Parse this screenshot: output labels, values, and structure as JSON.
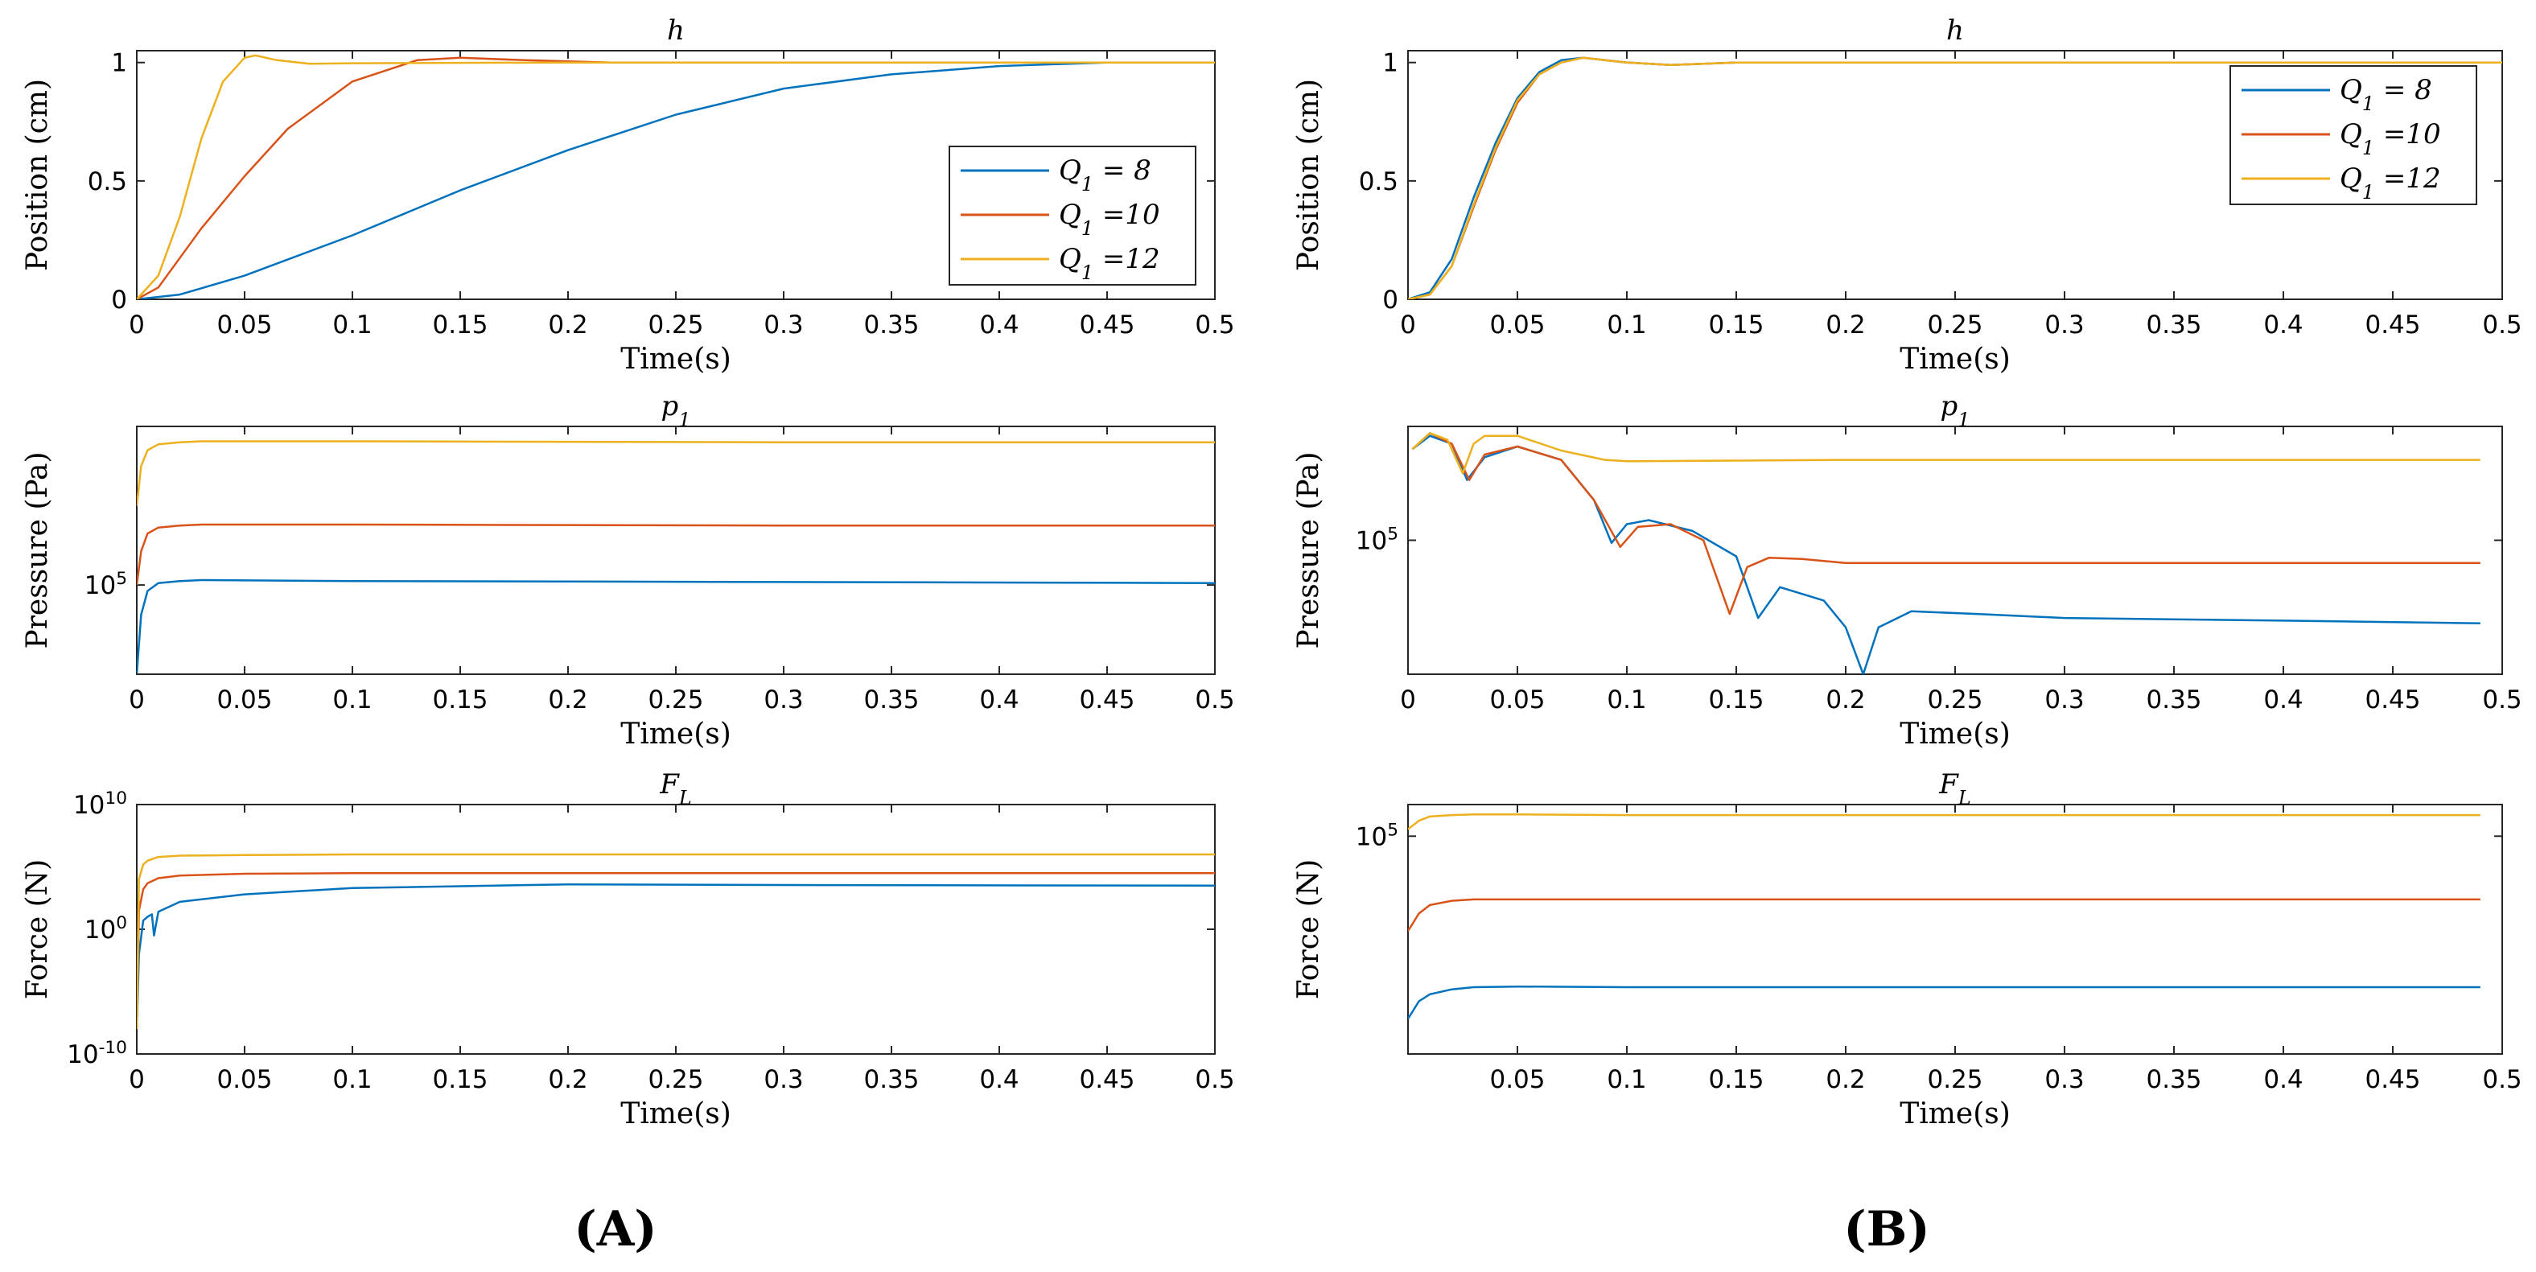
{
  "panel_labels": [
    "(A)",
    "(B)"
  ],
  "colors": {
    "Q1 = 8": "#0072BD",
    "Q1 =10": "#D95319",
    "Q1 =12": "#EDB120"
  },
  "chart_data": [
    {
      "id": "A-h",
      "type": "line",
      "title": "h",
      "xlabel": "Time(s)",
      "ylabel": "Position (cm)",
      "xlim": [
        0,
        0.5
      ],
      "ylim": [
        0,
        1.05
      ],
      "yscale": "linear",
      "xticks": [
        0,
        0.05,
        0.1,
        0.15,
        0.2,
        0.25,
        0.3,
        0.35,
        0.4,
        0.45,
        0.5
      ],
      "yticks": [
        0,
        0.5,
        1
      ],
      "ytick_labels": [
        "0",
        "0.5",
        "1"
      ],
      "legend": "right",
      "series": [
        {
          "name": "Q1 = 8",
          "x": [
            0,
            0.02,
            0.05,
            0.1,
            0.15,
            0.2,
            0.25,
            0.3,
            0.35,
            0.4,
            0.45,
            0.5
          ],
          "y": [
            0,
            0.02,
            0.1,
            0.27,
            0.46,
            0.63,
            0.78,
            0.89,
            0.95,
            0.985,
            1.0,
            1.0
          ]
        },
        {
          "name": "Q1 =10",
          "x": [
            0,
            0.01,
            0.03,
            0.05,
            0.07,
            0.1,
            0.13,
            0.15,
            0.18,
            0.22,
            0.3,
            0.5
          ],
          "y": [
            0,
            0.05,
            0.3,
            0.52,
            0.72,
            0.92,
            1.01,
            1.02,
            1.01,
            1.0,
            1.0,
            1.0
          ]
        },
        {
          "name": "Q1 =12",
          "x": [
            0,
            0.01,
            0.02,
            0.03,
            0.04,
            0.05,
            0.055,
            0.065,
            0.08,
            0.1,
            0.2,
            0.5
          ],
          "y": [
            0,
            0.1,
            0.35,
            0.68,
            0.92,
            1.02,
            1.03,
            1.01,
            0.995,
            0.997,
            1.0,
            1.0
          ]
        }
      ]
    },
    {
      "id": "A-p1",
      "type": "line",
      "title": "p1",
      "xlabel": "Time(s)",
      "ylabel": "Pressure (Pa)",
      "xlim": [
        0,
        0.5
      ],
      "ylim": [
        4.55,
        5.8
      ],
      "yscale": "log",
      "xticks": [
        0,
        0.05,
        0.1,
        0.15,
        0.2,
        0.25,
        0.3,
        0.35,
        0.4,
        0.45,
        0.5
      ],
      "yticks": [
        5
      ],
      "ytick_labels": [
        "10^5"
      ],
      "series": [
        {
          "name": "Q1 = 8",
          "x": [
            0,
            0.002,
            0.005,
            0.01,
            0.02,
            0.03,
            0.1,
            0.3,
            0.5
          ],
          "y": [
            4.55,
            4.85,
            4.97,
            5.01,
            5.02,
            5.025,
            5.02,
            5.015,
            5.01
          ]
        },
        {
          "name": "Q1 =10",
          "x": [
            0,
            0.002,
            0.005,
            0.01,
            0.02,
            0.03,
            0.1,
            0.3,
            0.5
          ],
          "y": [
            5.0,
            5.17,
            5.26,
            5.29,
            5.3,
            5.305,
            5.305,
            5.3,
            5.3
          ]
        },
        {
          "name": "Q1 =12",
          "x": [
            0,
            0.002,
            0.005,
            0.01,
            0.02,
            0.03,
            0.1,
            0.3,
            0.5
          ],
          "y": [
            5.4,
            5.6,
            5.68,
            5.71,
            5.72,
            5.725,
            5.725,
            5.72,
            5.72
          ]
        }
      ]
    },
    {
      "id": "A-FL",
      "type": "line",
      "title": "FL",
      "xlabel": "Time(s)",
      "ylabel": "Force (N)",
      "xlim": [
        0,
        0.5
      ],
      "ylim": [
        -10,
        10
      ],
      "yscale": "log",
      "xticks": [
        0,
        0.05,
        0.1,
        0.15,
        0.2,
        0.25,
        0.3,
        0.35,
        0.4,
        0.45,
        0.5
      ],
      "yticks": [
        -10,
        0,
        10
      ],
      "ytick_labels": [
        "10^-10",
        "10^0",
        "10^10"
      ],
      "series": [
        {
          "name": "Q1 = 8",
          "x": [
            0,
            0.001,
            0.003,
            0.005,
            0.007,
            0.008,
            0.01,
            0.02,
            0.05,
            0.1,
            0.2,
            0.3,
            0.5
          ],
          "y": [
            -8,
            -2,
            0.7,
            1.0,
            1.2,
            -0.5,
            1.4,
            2.2,
            2.8,
            3.3,
            3.6,
            3.55,
            3.5
          ]
        },
        {
          "name": "Q1 =10",
          "x": [
            0,
            0.001,
            0.003,
            0.005,
            0.01,
            0.02,
            0.05,
            0.1,
            0.3,
            0.5
          ],
          "y": [
            -8,
            1.5,
            3.2,
            3.7,
            4.1,
            4.3,
            4.45,
            4.5,
            4.5,
            4.5
          ]
        },
        {
          "name": "Q1 =12",
          "x": [
            0,
            0.001,
            0.003,
            0.005,
            0.01,
            0.02,
            0.05,
            0.1,
            0.3,
            0.5
          ],
          "y": [
            -8,
            4.0,
            5.2,
            5.5,
            5.8,
            5.9,
            5.95,
            6.0,
            6.0,
            6.0
          ]
        }
      ]
    },
    {
      "id": "B-h",
      "type": "line",
      "title": "h",
      "xlabel": "Time(s)",
      "ylabel": "Position (cm)",
      "xlim": [
        0,
        0.5
      ],
      "ylim": [
        0,
        1.05
      ],
      "yscale": "linear",
      "xticks": [
        0,
        0.05,
        0.1,
        0.15,
        0.2,
        0.25,
        0.3,
        0.35,
        0.4,
        0.45,
        0.5
      ],
      "yticks": [
        0,
        0.5,
        1
      ],
      "ytick_labels": [
        "0",
        "0.5",
        "1"
      ],
      "legend": "top-right",
      "series": [
        {
          "name": "Q1 = 8",
          "x": [
            0,
            0.01,
            0.02,
            0.03,
            0.04,
            0.05,
            0.06,
            0.07,
            0.08,
            0.09,
            0.1,
            0.12,
            0.15,
            0.5
          ],
          "y": [
            0,
            0.03,
            0.17,
            0.43,
            0.66,
            0.85,
            0.96,
            1.01,
            1.02,
            1.01,
            1.0,
            0.99,
            1.0,
            1.0
          ]
        },
        {
          "name": "Q1 =10",
          "x": [
            0,
            0.01,
            0.02,
            0.03,
            0.04,
            0.05,
            0.06,
            0.07,
            0.08,
            0.09,
            0.1,
            0.12,
            0.15,
            0.5
          ],
          "y": [
            0,
            0.02,
            0.14,
            0.39,
            0.63,
            0.83,
            0.95,
            1.0,
            1.02,
            1.01,
            1.0,
            0.99,
            1.0,
            1.0
          ]
        },
        {
          "name": "Q1 =12",
          "x": [
            0,
            0.01,
            0.02,
            0.03,
            0.04,
            0.05,
            0.06,
            0.07,
            0.08,
            0.09,
            0.1,
            0.12,
            0.15,
            0.5
          ],
          "y": [
            0,
            0.02,
            0.14,
            0.4,
            0.64,
            0.84,
            0.95,
            1.0,
            1.02,
            1.01,
            1.0,
            0.99,
            1.0,
            1.0
          ]
        }
      ]
    },
    {
      "id": "B-p1",
      "type": "line",
      "title": "p1",
      "xlabel": "Time(s)",
      "ylabel": "Pressure (Pa)",
      "xlim": [
        0,
        0.5
      ],
      "ylim": [
        4.0,
        5.85
      ],
      "yscale": "log",
      "xticks": [
        0,
        0.05,
        0.1,
        0.15,
        0.2,
        0.25,
        0.3,
        0.35,
        0.4,
        0.45,
        0.5
      ],
      "yticks": [
        5
      ],
      "ytick_labels": [
        "10^5"
      ],
      "series": [
        {
          "name": "Q1 = 8",
          "x": [
            0.002,
            0.01,
            0.02,
            0.027,
            0.035,
            0.05,
            0.07,
            0.085,
            0.093,
            0.1,
            0.11,
            0.13,
            0.15,
            0.16,
            0.17,
            0.19,
            0.2,
            0.208,
            0.215,
            0.23,
            0.26,
            0.3,
            0.4,
            0.49
          ],
          "y": [
            5.68,
            5.78,
            5.72,
            5.45,
            5.62,
            5.7,
            5.6,
            5.3,
            4.98,
            5.12,
            5.15,
            5.07,
            4.88,
            4.42,
            4.65,
            4.55,
            4.35,
            4.0,
            4.35,
            4.47,
            4.45,
            4.42,
            4.4,
            4.38
          ]
        },
        {
          "name": "Q1 =10",
          "x": [
            0.002,
            0.01,
            0.02,
            0.028,
            0.035,
            0.05,
            0.07,
            0.085,
            0.097,
            0.105,
            0.12,
            0.135,
            0.147,
            0.155,
            0.165,
            0.18,
            0.2,
            0.3,
            0.49
          ],
          "y": [
            5.68,
            5.8,
            5.72,
            5.45,
            5.64,
            5.7,
            5.6,
            5.3,
            4.95,
            5.1,
            5.12,
            5.0,
            4.45,
            4.8,
            4.87,
            4.86,
            4.83,
            4.83,
            4.83
          ]
        },
        {
          "name": "Q1 =12",
          "x": [
            0.002,
            0.01,
            0.018,
            0.025,
            0.03,
            0.035,
            0.05,
            0.07,
            0.09,
            0.1,
            0.2,
            0.3,
            0.49
          ],
          "y": [
            5.68,
            5.8,
            5.75,
            5.5,
            5.72,
            5.78,
            5.78,
            5.67,
            5.6,
            5.59,
            5.6,
            5.6,
            5.6
          ]
        }
      ]
    },
    {
      "id": "B-FL",
      "type": "line",
      "title": "FL",
      "xlabel": "Time(s)",
      "ylabel": "Force (N)",
      "xlim": [
        0,
        0.5
      ],
      "ylim": [
        1.9,
        5.45
      ],
      "yscale": "log",
      "xticks": [
        0.05,
        0.1,
        0.15,
        0.2,
        0.25,
        0.3,
        0.35,
        0.4,
        0.45,
        0.5
      ],
      "yticks": [
        5
      ],
      "ytick_labels": [
        "10^5"
      ],
      "series": [
        {
          "name": "Q1 = 8",
          "x": [
            0,
            0.005,
            0.01,
            0.02,
            0.03,
            0.05,
            0.1,
            0.2,
            0.3,
            0.4,
            0.49
          ],
          "y": [
            2.4,
            2.65,
            2.75,
            2.82,
            2.85,
            2.86,
            2.85,
            2.85,
            2.85,
            2.85,
            2.85
          ]
        },
        {
          "name": "Q1 =10",
          "x": [
            0,
            0.005,
            0.01,
            0.02,
            0.03,
            0.05,
            0.1,
            0.2,
            0.3,
            0.4,
            0.49
          ],
          "y": [
            3.65,
            3.9,
            4.02,
            4.08,
            4.1,
            4.1,
            4.1,
            4.1,
            4.1,
            4.1,
            4.1
          ]
        },
        {
          "name": "Q1 =12",
          "x": [
            0,
            0.005,
            0.01,
            0.02,
            0.03,
            0.05,
            0.1,
            0.2,
            0.3,
            0.4,
            0.49
          ],
          "y": [
            5.1,
            5.22,
            5.28,
            5.3,
            5.31,
            5.31,
            5.3,
            5.3,
            5.3,
            5.3,
            5.3
          ]
        }
      ]
    }
  ]
}
